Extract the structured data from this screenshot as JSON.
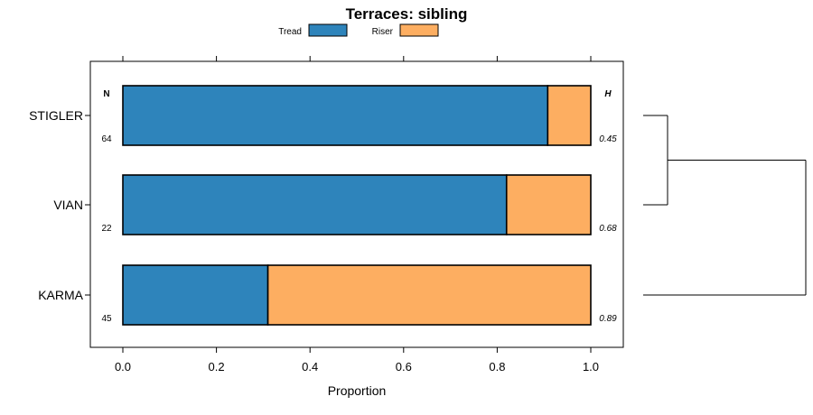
{
  "chart_data": {
    "type": "bar",
    "orientation": "horizontal",
    "stacked": true,
    "title": "Terraces: sibling",
    "xlabel": "Proportion",
    "ylabel": "",
    "xlim": [
      0,
      1
    ],
    "xticks": [
      "0.0",
      "0.2",
      "0.4",
      "0.6",
      "0.8",
      "1.0"
    ],
    "legend": [
      {
        "name": "Tread",
        "color": "#2e84bb"
      },
      {
        "name": "Riser",
        "color": "#fdae61"
      }
    ],
    "categories": [
      "STIGLER",
      "VIAN",
      "KARMA"
    ],
    "series": [
      {
        "name": "Tread",
        "values": [
          0.908,
          0.82,
          0.31
        ]
      },
      {
        "name": "Riser",
        "values": [
          0.092,
          0.18,
          0.69
        ]
      }
    ],
    "n_header": "N",
    "n_values": [
      "64",
      "22",
      "45"
    ],
    "h_header": "H",
    "h_values": [
      "0.45",
      "0.68",
      "0.89"
    ],
    "dendrogram": "STIGLER and VIAN join first; KARMA joins at the root"
  }
}
